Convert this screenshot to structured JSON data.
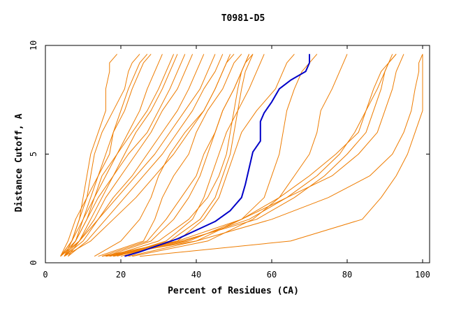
{
  "chart_data": {
    "type": "line",
    "title": "T0981-D5",
    "xlabel": "Percent of Residues (CA)",
    "ylabel": "Distance Cutoff, A",
    "xlim": [
      0,
      100
    ],
    "ylim": [
      0,
      10
    ],
    "x_ticks": [
      "0",
      "20",
      "40",
      "60",
      "80",
      "100"
    ],
    "y_ticks": [
      "0",
      "5",
      "10"
    ],
    "grid": false,
    "legend": "none",
    "colors": {
      "highlight": "#0000c8",
      "others": "#ee7c00"
    },
    "highlight_series": {
      "x": [
        21,
        25,
        30,
        35,
        40,
        45,
        49,
        52,
        53,
        55,
        57,
        57,
        58,
        60,
        62,
        65,
        69,
        70,
        70
      ],
      "y": [
        0.3,
        0.5,
        0.8,
        1.1,
        1.5,
        1.9,
        2.4,
        3.0,
        3.6,
        5.1,
        5.6,
        6.5,
        6.9,
        7.4,
        8.0,
        8.4,
        8.8,
        9.2,
        9.6
      ]
    },
    "other_series": [
      {
        "x": [
          5,
          7,
          9,
          10,
          11,
          12,
          14,
          16,
          16,
          17,
          17,
          19
        ],
        "y": [
          0.3,
          1.0,
          2.0,
          3.0,
          4.0,
          5.0,
          6.0,
          7.0,
          8.0,
          8.8,
          9.2,
          9.6
        ]
      },
      {
        "x": [
          4,
          6,
          8,
          11,
          12,
          13,
          15,
          18,
          21,
          22,
          23,
          25
        ],
        "y": [
          0.3,
          1.0,
          2.0,
          3.0,
          4.0,
          5.0,
          6.0,
          7.0,
          8.0,
          8.8,
          9.2,
          9.6
        ]
      },
      {
        "x": [
          5,
          8,
          10,
          12,
          14,
          17,
          18,
          21,
          23,
          25,
          26,
          28
        ],
        "y": [
          0.3,
          1.0,
          2.0,
          3.0,
          4.0,
          5.0,
          6.0,
          7.0,
          8.0,
          8.8,
          9.2,
          9.6
        ]
      },
      {
        "x": [
          4,
          7,
          9,
          11,
          14,
          16,
          18,
          20,
          22,
          24,
          25,
          27
        ],
        "y": [
          0.3,
          1.0,
          2.0,
          3.0,
          4.0,
          5.0,
          6.0,
          7.0,
          8.0,
          8.8,
          9.2,
          9.6
        ]
      },
      {
        "x": [
          5,
          8,
          11,
          13,
          15,
          19,
          22,
          25,
          27,
          29,
          30,
          31
        ],
        "y": [
          0.3,
          1.0,
          2.0,
          3.0,
          4.0,
          5.0,
          6.0,
          7.0,
          8.0,
          8.8,
          9.2,
          9.6
        ]
      },
      {
        "x": [
          4,
          7,
          10,
          13,
          16,
          19,
          23,
          27,
          30,
          32,
          33,
          34
        ],
        "y": [
          0.3,
          1.0,
          2.0,
          3.0,
          4.0,
          5.0,
          6.0,
          7.0,
          8.0,
          8.8,
          9.2,
          9.6
        ]
      },
      {
        "x": [
          6,
          9,
          12,
          15,
          18,
          21,
          24,
          28,
          31,
          33,
          34,
          35
        ],
        "y": [
          0.3,
          1.0,
          2.0,
          3.0,
          4.0,
          5.0,
          6.0,
          7.0,
          8.0,
          8.8,
          9.2,
          9.6
        ]
      },
      {
        "x": [
          5,
          9,
          13,
          16,
          20,
          24,
          28,
          31,
          35,
          37,
          38,
          39
        ],
        "y": [
          0.3,
          1.0,
          2.0,
          3.0,
          4.0,
          5.0,
          6.0,
          7.0,
          8.0,
          8.8,
          9.2,
          9.6
        ]
      },
      {
        "x": [
          4,
          8,
          11,
          14,
          18,
          22,
          27,
          30,
          33,
          35,
          36,
          37
        ],
        "y": [
          0.3,
          1.0,
          2.0,
          3.0,
          4.0,
          5.0,
          6.0,
          7.0,
          8.0,
          8.8,
          9.2,
          9.6
        ]
      },
      {
        "x": [
          5,
          10,
          14,
          18,
          23,
          27,
          31,
          35,
          38,
          40,
          41,
          42
        ],
        "y": [
          0.3,
          1.0,
          2.0,
          3.0,
          4.0,
          5.0,
          6.0,
          7.0,
          8.0,
          8.8,
          9.2,
          9.6
        ]
      },
      {
        "x": [
          4,
          9,
          14,
          19,
          24,
          29,
          33,
          37,
          41,
          43,
          44,
          45
        ],
        "y": [
          0.3,
          1.0,
          2.0,
          3.0,
          4.0,
          5.0,
          6.0,
          7.0,
          8.0,
          8.8,
          9.2,
          9.6
        ]
      },
      {
        "x": [
          6,
          11,
          16,
          21,
          26,
          31,
          35,
          39,
          42,
          45,
          46,
          47
        ],
        "y": [
          0.3,
          1.0,
          2.0,
          3.0,
          4.0,
          5.0,
          6.0,
          7.0,
          8.0,
          8.8,
          9.2,
          9.6
        ]
      },
      {
        "x": [
          5,
          12,
          18,
          24,
          29,
          34,
          38,
          42,
          45,
          47,
          48,
          49
        ],
        "y": [
          0.3,
          1.0,
          2.0,
          3.0,
          4.0,
          5.0,
          6.0,
          7.0,
          8.0,
          8.8,
          9.2,
          9.6
        ]
      },
      {
        "x": [
          13,
          20,
          25,
          28,
          30,
          33,
          37,
          42,
          45,
          47,
          48,
          50
        ],
        "y": [
          0.3,
          1.0,
          2.0,
          3.0,
          4.0,
          5.0,
          6.0,
          7.0,
          8.0,
          8.8,
          9.2,
          9.6
        ]
      },
      {
        "x": [
          14,
          26,
          29,
          31,
          34,
          38,
          40,
          43,
          47,
          49,
          50,
          52
        ],
        "y": [
          0.3,
          1.0,
          2.0,
          3.0,
          4.0,
          5.0,
          6.0,
          7.0,
          8.0,
          8.8,
          9.2,
          9.6
        ]
      },
      {
        "x": [
          15,
          27,
          32,
          36,
          40,
          42,
          45,
          47,
          50,
          52,
          53,
          55
        ],
        "y": [
          0.3,
          1.0,
          2.0,
          3.0,
          4.0,
          5.0,
          6.0,
          7.0,
          8.0,
          8.8,
          9.2,
          9.6
        ]
      },
      {
        "x": [
          16,
          28,
          34,
          38,
          41,
          43,
          45,
          47,
          50,
          52,
          53,
          54
        ],
        "y": [
          0.3,
          1.0,
          2.0,
          3.0,
          4.0,
          5.0,
          6.0,
          7.0,
          8.0,
          8.8,
          9.2,
          9.6
        ]
      },
      {
        "x": [
          17,
          30,
          38,
          43,
          46,
          48,
          49,
          50,
          51,
          52,
          53,
          54
        ],
        "y": [
          0.3,
          1.0,
          2.0,
          3.0,
          4.0,
          5.0,
          6.0,
          7.0,
          8.0,
          8.8,
          9.2,
          9.6
        ]
      },
      {
        "x": [
          18,
          33,
          41,
          45,
          47,
          49,
          50,
          51,
          52,
          53,
          54,
          55
        ],
        "y": [
          0.3,
          1.0,
          2.0,
          3.0,
          4.0,
          5.0,
          6.0,
          7.0,
          8.0,
          8.8,
          9.2,
          9.6
        ]
      },
      {
        "x": [
          19,
          32,
          39,
          42,
          44,
          46,
          48,
          51,
          54,
          56,
          57,
          58
        ],
        "y": [
          0.3,
          1.0,
          2.0,
          3.0,
          4.0,
          5.0,
          6.0,
          7.0,
          8.0,
          8.8,
          9.2,
          9.6
        ]
      },
      {
        "x": [
          20,
          35,
          42,
          46,
          48,
          50,
          52,
          56,
          61,
          63,
          64,
          66
        ],
        "y": [
          0.3,
          1.0,
          2.0,
          3.0,
          4.0,
          5.0,
          6.0,
          7.0,
          8.0,
          8.8,
          9.2,
          9.6
        ]
      },
      {
        "x": [
          22,
          40,
          52,
          58,
          60,
          62,
          63,
          64,
          66,
          68,
          70,
          72
        ],
        "y": [
          0.3,
          1.0,
          2.0,
          3.0,
          4.0,
          5.0,
          6.0,
          7.0,
          8.0,
          8.8,
          9.2,
          9.6
        ]
      },
      {
        "x": [
          23,
          43,
          55,
          62,
          66,
          70,
          72,
          73,
          76,
          78,
          79,
          80
        ],
        "y": [
          0.3,
          1.0,
          2.0,
          3.0,
          4.0,
          5.0,
          6.0,
          7.0,
          8.0,
          8.8,
          9.2,
          9.6
        ]
      },
      {
        "x": [
          18,
          38,
          52,
          62,
          70,
          77,
          83,
          85,
          87,
          89,
          91,
          93
        ],
        "y": [
          0.3,
          1.0,
          2.0,
          3.0,
          4.0,
          5.0,
          6.0,
          7.0,
          8.0,
          8.8,
          9.2,
          9.6
        ]
      },
      {
        "x": [
          17,
          37,
          54,
          64,
          72,
          78,
          82,
          85,
          88,
          90,
          91,
          92
        ],
        "y": [
          0.3,
          1.0,
          2.0,
          3.0,
          4.0,
          5.0,
          6.0,
          7.0,
          8.0,
          8.8,
          9.2,
          9.6
        ]
      },
      {
        "x": [
          16,
          36,
          56,
          66,
          74,
          80,
          85,
          87,
          89,
          90,
          91,
          93
        ],
        "y": [
          0.3,
          1.0,
          2.0,
          3.0,
          4.0,
          5.0,
          6.0,
          7.0,
          8.0,
          8.8,
          9.2,
          9.6
        ]
      },
      {
        "x": [
          15,
          35,
          52,
          64,
          76,
          83,
          88,
          90,
          92,
          93,
          94,
          95
        ],
        "y": [
          0.3,
          1.0,
          2.0,
          3.0,
          4.0,
          5.0,
          6.0,
          7.0,
          8.0,
          8.8,
          9.2,
          9.6
        ]
      },
      {
        "x": [
          16,
          40,
          60,
          75,
          86,
          92,
          95,
          97,
          98,
          99,
          99,
          100
        ],
        "y": [
          0.3,
          1.0,
          2.0,
          3.0,
          4.0,
          5.0,
          6.0,
          7.0,
          8.0,
          8.8,
          9.2,
          9.6
        ]
      },
      {
        "x": [
          25,
          65,
          84,
          89,
          93,
          96,
          98,
          100,
          100,
          100,
          100,
          100
        ],
        "y": [
          0.3,
          1.0,
          2.0,
          3.0,
          4.0,
          5.0,
          6.0,
          7.0,
          8.0,
          8.8,
          9.2,
          9.6
        ]
      }
    ]
  }
}
